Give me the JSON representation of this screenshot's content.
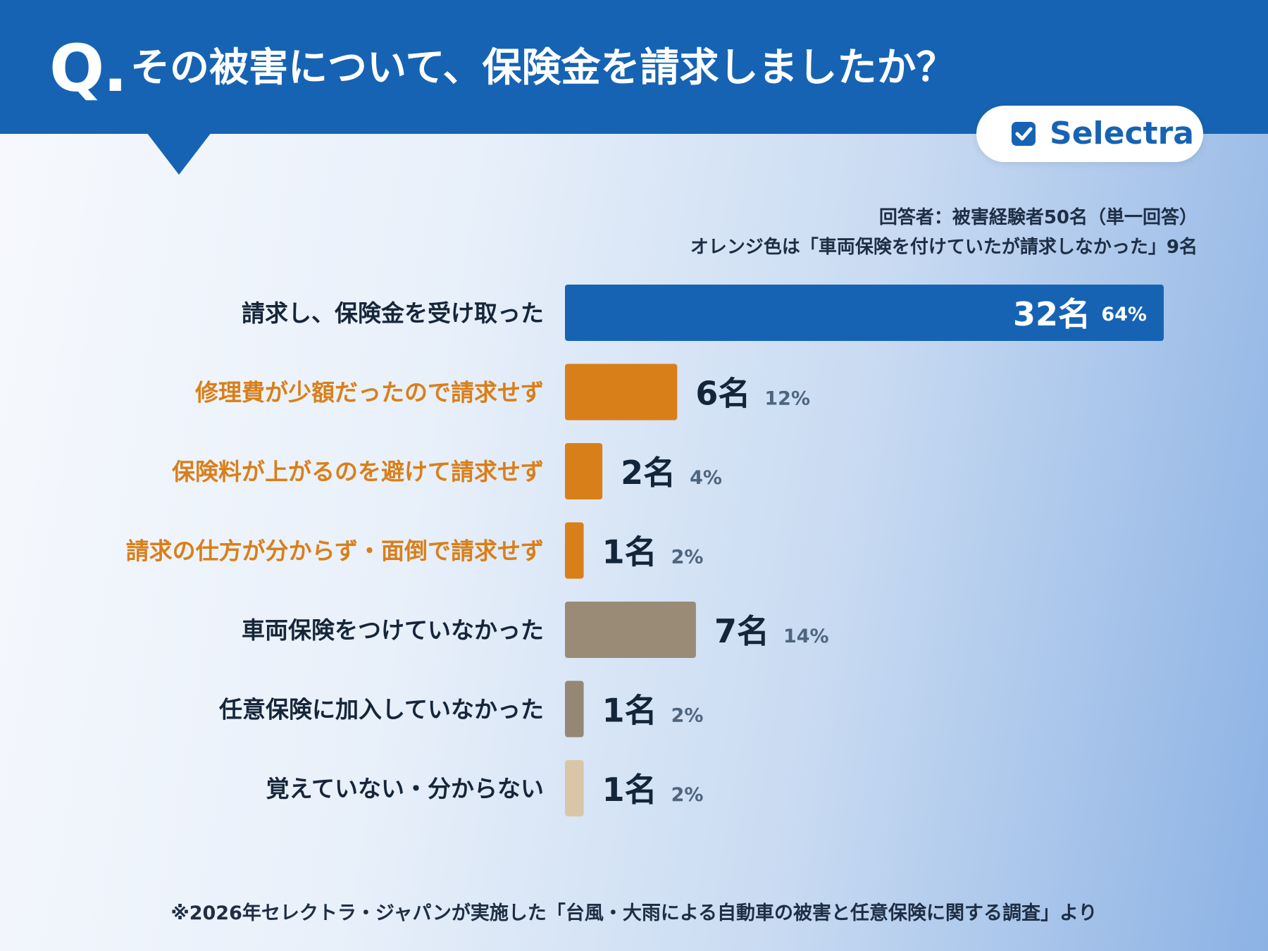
{
  "header": {
    "q_mark": "Q.",
    "question": "その被害について、保険金を請求しましたか？"
  },
  "brand": {
    "name": "Selectra",
    "icon": "check-square-icon",
    "color": "#1763b3"
  },
  "notes": {
    "respondents": "回答者：被害経験者50名（単一回答）",
    "orange_note": "オレンジ色は「車両保険を付けていたが請求しなかった」9名"
  },
  "chart_data": {
    "type": "bar",
    "orientation": "horizontal",
    "categories": [
      "請求し、保険金を受け取った",
      "修理費が少額だったので請求せず",
      "保険料が上がるのを避けて請求せず",
      "請求の仕方が分からず・面倒で請求せず",
      "車両保険をつけていなかった",
      "任意保険に加入していなかった",
      "覚えていない・分からない"
    ],
    "values": [
      32,
      6,
      2,
      1,
      7,
      1,
      1
    ],
    "count_labels": [
      "32名",
      "6名",
      "2名",
      "1名",
      "7名",
      "1名",
      "1名"
    ],
    "percent_labels": [
      "64%",
      "12%",
      "4%",
      "2%",
      "14%",
      "2%",
      "2%"
    ],
    "bar_colors": [
      "#1763b3",
      "#d97f1a",
      "#d97f1a",
      "#d97f1a",
      "#9a8b77",
      "#958775",
      "#d9c6a8"
    ],
    "label_colors": [
      "#16263a",
      "#d97f1a",
      "#d97f1a",
      "#d97f1a",
      "#16263a",
      "#16263a",
      "#16263a"
    ],
    "xlim": [
      0,
      32
    ]
  },
  "footnote": "※2026年セレクトラ・ジャパンが実施した「台風・大雨による自動車の被害と任意保険に関する調査」より"
}
